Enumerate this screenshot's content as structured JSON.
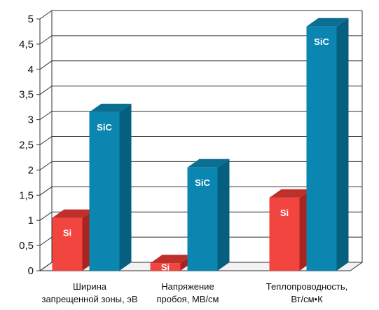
{
  "chart_data": {
    "type": "bar",
    "categories": [
      [
        "Ширина",
        "запрещенной зоны, эВ"
      ],
      [
        "Напряжение",
        "пробоя, МВ/см"
      ],
      [
        "Теплопроводность,",
        "Вт/см•К"
      ]
    ],
    "series": [
      {
        "name": "Si",
        "values": [
          1.05,
          0.15,
          1.45
        ],
        "color": "#f2453f",
        "side_color": "#a82420",
        "top_color": "#c0302b"
      },
      {
        "name": "SiC",
        "values": [
          3.15,
          2.05,
          4.85
        ],
        "color": "#0a86b1",
        "side_color": "#075f80",
        "top_color": "#0b6f92"
      }
    ],
    "ylim": [
      0,
      5
    ],
    "yticks": [
      {
        "value": 0,
        "label": "0"
      },
      {
        "value": 0.5,
        "label": "0,5"
      },
      {
        "value": 1,
        "label": "1"
      },
      {
        "value": 1.5,
        "label": "1,5"
      },
      {
        "value": 2,
        "label": "2"
      },
      {
        "value": 2.5,
        "label": "2,5"
      },
      {
        "value": 3,
        "label": "3"
      },
      {
        "value": 3.5,
        "label": "3,5"
      },
      {
        "value": 4,
        "label": "4"
      },
      {
        "value": 4.5,
        "label": "4,5"
      },
      {
        "value": 5,
        "label": "5"
      }
    ],
    "grid": true,
    "style": "3d-bar",
    "colors": {
      "grid": "#333333",
      "wall": "#ffffff",
      "floor": "#f2f2f2"
    }
  }
}
